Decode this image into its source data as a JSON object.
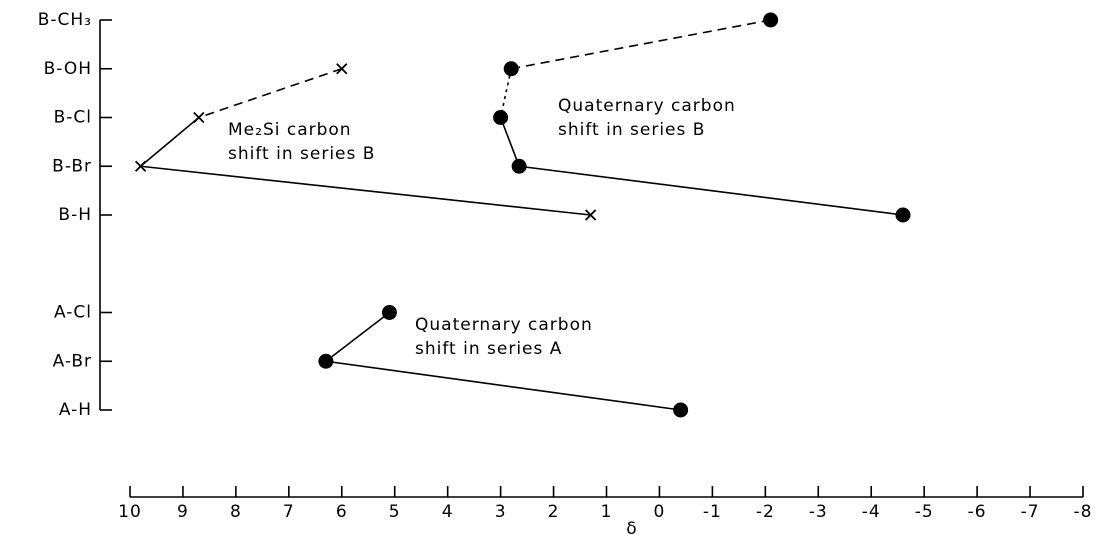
{
  "chart_data": {
    "type": "line",
    "orientation": "horizontal",
    "categories": [
      "B-CH₃",
      "B-OH",
      "B-Cl",
      "B-Br",
      "B-H",
      null,
      "A-Cl",
      "A-Br",
      "A-H"
    ],
    "xlabel": "δ",
    "xlim": [
      10,
      -8
    ],
    "xticks": [
      10,
      9,
      8,
      7,
      6,
      5,
      4,
      3,
      2,
      1,
      0,
      -1,
      -2,
      -3,
      -4,
      -5,
      -6,
      -7,
      -8
    ],
    "series": [
      {
        "label": [
          "Me₂Si carbon",
          "shift in series B"
        ],
        "color": "#000000",
        "marker": "x",
        "segments": [
          "dashed",
          "solid",
          "solid"
        ],
        "values": [
          null,
          6.0,
          8.7,
          9.8,
          1.3,
          null,
          null,
          null,
          null
        ]
      },
      {
        "label": [
          "Quaternary carbon",
          "shift in series B"
        ],
        "color": "#000000",
        "marker": "dot",
        "segments": [
          "dashed",
          "dotted",
          "solid",
          "solid"
        ],
        "values": [
          -2.1,
          2.8,
          3.0,
          2.65,
          -4.6,
          null,
          null,
          null,
          null
        ]
      },
      {
        "label": [
          "Quaternary carbon",
          "shift in series A"
        ],
        "color": "#000000",
        "marker": "dot",
        "segments": [
          "solid",
          "solid"
        ],
        "values": [
          null,
          null,
          null,
          null,
          null,
          null,
          5.1,
          6.3,
          -0.4
        ]
      }
    ]
  }
}
